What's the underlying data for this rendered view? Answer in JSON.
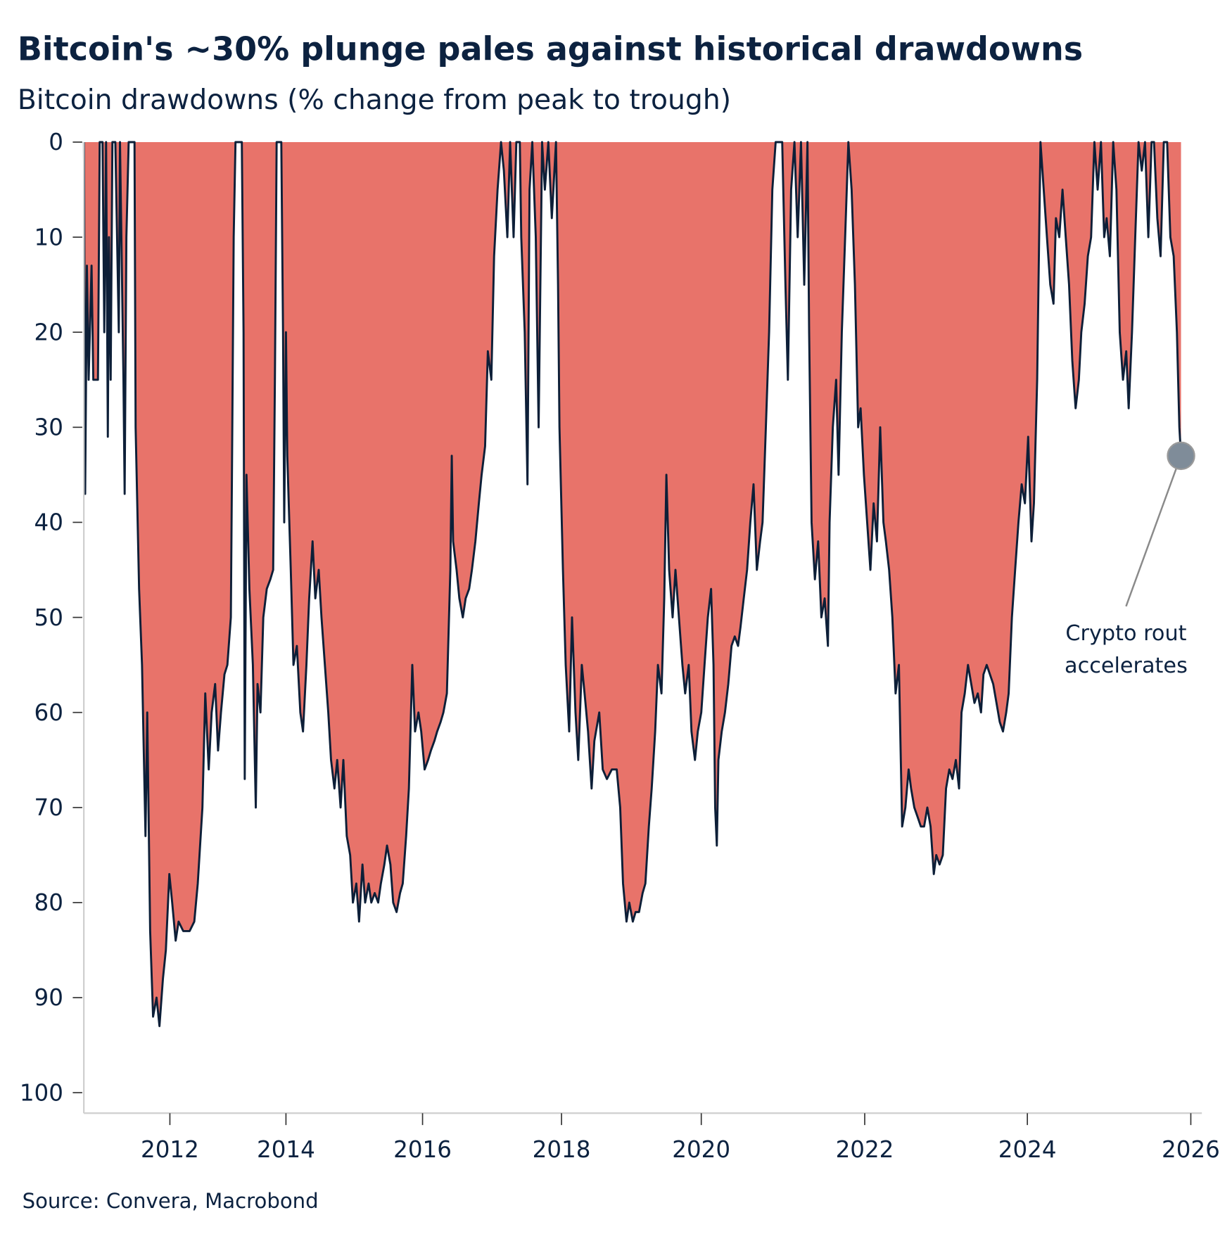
{
  "title": "Bitcoin's ~30% plunge pales against historical drawdowns",
  "subtitle": "Bitcoin drawdowns (% change from peak to trough)",
  "source": "Source: Convera, Macrobond",
  "annotation": {
    "line1": "Crypto rout",
    "line2": "accelerates"
  },
  "colors": {
    "fill": "#e8736a",
    "line": "#0d1f38",
    "marker": "#7f8c99",
    "text": "#0c2240"
  },
  "chart_data": {
    "type": "area",
    "title": "Bitcoin's ~30% plunge pales against historical drawdowns",
    "subtitle": "Bitcoin drawdowns (% change from peak to trough)",
    "xlabel": "",
    "ylabel": "",
    "y_inverted": true,
    "ylim": [
      0,
      100
    ],
    "y_ticks": [
      "0",
      "10",
      "20",
      "30",
      "40",
      "50",
      "60",
      "70",
      "80",
      "90",
      "100"
    ],
    "x_ticks": [
      "2012",
      "2014",
      "2016",
      "2018",
      "2020",
      "2022",
      "2024",
      "2026"
    ],
    "grid": false,
    "annotation": {
      "text": "Crypto rout accelerates",
      "x": 2025.88,
      "y": 33
    },
    "points": [
      [
        2010.52,
        0
      ],
      [
        2010.54,
        37
      ],
      [
        2010.57,
        13
      ],
      [
        2010.6,
        25
      ],
      [
        2010.65,
        13
      ],
      [
        2010.68,
        25
      ],
      [
        2010.76,
        25
      ],
      [
        2010.79,
        0
      ],
      [
        2010.84,
        0
      ],
      [
        2010.87,
        20
      ],
      [
        2010.9,
        0
      ],
      [
        2010.93,
        31
      ],
      [
        2010.95,
        10
      ],
      [
        2010.98,
        25
      ],
      [
        2011.01,
        0
      ],
      [
        2011.06,
        0
      ],
      [
        2011.12,
        20
      ],
      [
        2011.14,
        0
      ],
      [
        2011.2,
        25
      ],
      [
        2011.22,
        37
      ],
      [
        2011.25,
        10
      ],
      [
        2011.29,
        0
      ],
      [
        2011.39,
        0
      ],
      [
        2011.41,
        30
      ],
      [
        2011.47,
        47
      ],
      [
        2011.52,
        55
      ],
      [
        2011.58,
        73
      ],
      [
        2011.61,
        60
      ],
      [
        2011.66,
        83
      ],
      [
        2011.71,
        92
      ],
      [
        2011.77,
        90
      ],
      [
        2011.82,
        93
      ],
      [
        2011.88,
        88
      ],
      [
        2011.93,
        85
      ],
      [
        2011.99,
        77
      ],
      [
        2012.04,
        80
      ],
      [
        2012.1,
        84
      ],
      [
        2012.15,
        82
      ],
      [
        2012.23,
        83
      ],
      [
        2012.34,
        83
      ],
      [
        2012.42,
        82
      ],
      [
        2012.48,
        78
      ],
      [
        2012.56,
        70
      ],
      [
        2012.61,
        58
      ],
      [
        2012.67,
        66
      ],
      [
        2012.72,
        60
      ],
      [
        2012.78,
        57
      ],
      [
        2012.83,
        64
      ],
      [
        2012.88,
        60
      ],
      [
        2012.94,
        56
      ],
      [
        2012.99,
        55
      ],
      [
        2013.05,
        50
      ],
      [
        2013.07,
        35
      ],
      [
        2013.1,
        10
      ],
      [
        2013.13,
        0
      ],
      [
        2013.24,
        0
      ],
      [
        2013.27,
        20
      ],
      [
        2013.29,
        67
      ],
      [
        2013.32,
        35
      ],
      [
        2013.37,
        47
      ],
      [
        2013.43,
        55
      ],
      [
        2013.48,
        70
      ],
      [
        2013.51,
        57
      ],
      [
        2013.56,
        60
      ],
      [
        2013.61,
        50
      ],
      [
        2013.67,
        47
      ],
      [
        2013.73,
        46
      ],
      [
        2013.78,
        45
      ],
      [
        2013.81,
        25
      ],
      [
        2013.84,
        0
      ],
      [
        2013.92,
        0
      ],
      [
        2013.95,
        20
      ],
      [
        2013.97,
        40
      ],
      [
        2014.0,
        20
      ],
      [
        2014.02,
        33
      ],
      [
        2014.07,
        45
      ],
      [
        2014.11,
        55
      ],
      [
        2014.16,
        53
      ],
      [
        2014.21,
        60
      ],
      [
        2014.25,
        62
      ],
      [
        2014.3,
        55
      ],
      [
        2014.34,
        48
      ],
      [
        2014.39,
        42
      ],
      [
        2014.43,
        48
      ],
      [
        2014.48,
        45
      ],
      [
        2014.52,
        50
      ],
      [
        2014.57,
        55
      ],
      [
        2014.62,
        60
      ],
      [
        2014.66,
        65
      ],
      [
        2014.71,
        68
      ],
      [
        2014.75,
        65
      ],
      [
        2014.8,
        70
      ],
      [
        2014.84,
        65
      ],
      [
        2014.89,
        73
      ],
      [
        2014.94,
        75
      ],
      [
        2014.98,
        80
      ],
      [
        2015.03,
        78
      ],
      [
        2015.07,
        82
      ],
      [
        2015.12,
        76
      ],
      [
        2015.16,
        80
      ],
      [
        2015.21,
        78
      ],
      [
        2015.25,
        80
      ],
      [
        2015.3,
        79
      ],
      [
        2015.35,
        80
      ],
      [
        2015.39,
        78
      ],
      [
        2015.44,
        76
      ],
      [
        2015.48,
        74
      ],
      [
        2015.53,
        76
      ],
      [
        2015.57,
        80
      ],
      [
        2015.62,
        81
      ],
      [
        2015.67,
        79
      ],
      [
        2015.71,
        78
      ],
      [
        2015.76,
        73
      ],
      [
        2015.8,
        68
      ],
      [
        2015.85,
        55
      ],
      [
        2015.89,
        62
      ],
      [
        2015.94,
        60
      ],
      [
        2015.98,
        62
      ],
      [
        2016.03,
        66
      ],
      [
        2016.08,
        65
      ],
      [
        2016.12,
        64
      ],
      [
        2016.17,
        63
      ],
      [
        2016.21,
        62
      ],
      [
        2016.26,
        61
      ],
      [
        2016.3,
        60
      ],
      [
        2016.35,
        58
      ],
      [
        2016.4,
        45
      ],
      [
        2016.42,
        33
      ],
      [
        2016.44,
        42
      ],
      [
        2016.49,
        45
      ],
      [
        2016.53,
        48
      ],
      [
        2016.58,
        50
      ],
      [
        2016.62,
        48
      ],
      [
        2016.67,
        47
      ],
      [
        2016.71,
        45
      ],
      [
        2016.76,
        42
      ],
      [
        2016.81,
        38
      ],
      [
        2016.85,
        35
      ],
      [
        2016.9,
        32
      ],
      [
        2016.94,
        22
      ],
      [
        2016.99,
        25
      ],
      [
        2017.03,
        12
      ],
      [
        2017.08,
        5
      ],
      [
        2017.13,
        0
      ],
      [
        2017.17,
        3
      ],
      [
        2017.22,
        10
      ],
      [
        2017.26,
        0
      ],
      [
        2017.31,
        10
      ],
      [
        2017.35,
        0
      ],
      [
        2017.4,
        0
      ],
      [
        2017.42,
        10
      ],
      [
        2017.47,
        20
      ],
      [
        2017.51,
        36
      ],
      [
        2017.54,
        5
      ],
      [
        2017.58,
        0
      ],
      [
        2017.63,
        10
      ],
      [
        2017.67,
        30
      ],
      [
        2017.72,
        0
      ],
      [
        2017.76,
        5
      ],
      [
        2017.81,
        0
      ],
      [
        2017.86,
        8
      ],
      [
        2017.92,
        0
      ],
      [
        2017.95,
        15
      ],
      [
        2017.97,
        30
      ],
      [
        2018.02,
        45
      ],
      [
        2018.06,
        55
      ],
      [
        2018.11,
        62
      ],
      [
        2018.15,
        50
      ],
      [
        2018.2,
        60
      ],
      [
        2018.24,
        65
      ],
      [
        2018.29,
        55
      ],
      [
        2018.33,
        58
      ],
      [
        2018.38,
        62
      ],
      [
        2018.43,
        68
      ],
      [
        2018.47,
        63
      ],
      [
        2018.54,
        60
      ],
      [
        2018.59,
        66
      ],
      [
        2018.65,
        67
      ],
      [
        2018.72,
        66
      ],
      [
        2018.79,
        66
      ],
      [
        2018.84,
        70
      ],
      [
        2018.88,
        78
      ],
      [
        2018.93,
        82
      ],
      [
        2018.97,
        80
      ],
      [
        2019.02,
        82
      ],
      [
        2019.06,
        81
      ],
      [
        2019.11,
        81
      ],
      [
        2019.16,
        79
      ],
      [
        2019.2,
        78
      ],
      [
        2019.25,
        72
      ],
      [
        2019.29,
        68
      ],
      [
        2019.34,
        62
      ],
      [
        2019.38,
        55
      ],
      [
        2019.43,
        58
      ],
      [
        2019.47,
        48
      ],
      [
        2019.5,
        35
      ],
      [
        2019.54,
        45
      ],
      [
        2019.59,
        50
      ],
      [
        2019.63,
        45
      ],
      [
        2019.68,
        50
      ],
      [
        2019.73,
        55
      ],
      [
        2019.77,
        58
      ],
      [
        2019.82,
        55
      ],
      [
        2019.86,
        62
      ],
      [
        2019.91,
        65
      ],
      [
        2019.95,
        62
      ],
      [
        2020.0,
        60
      ],
      [
        2020.04,
        55
      ],
      [
        2020.08,
        50
      ],
      [
        2020.12,
        47
      ],
      [
        2020.15,
        55
      ],
      [
        2020.17,
        70
      ],
      [
        2020.19,
        74
      ],
      [
        2020.21,
        65
      ],
      [
        2020.25,
        62
      ],
      [
        2020.29,
        60
      ],
      [
        2020.33,
        57
      ],
      [
        2020.37,
        53
      ],
      [
        2020.41,
        52
      ],
      [
        2020.45,
        53
      ],
      [
        2020.48,
        51
      ],
      [
        2020.52,
        48
      ],
      [
        2020.56,
        45
      ],
      [
        2020.6,
        40
      ],
      [
        2020.64,
        36
      ],
      [
        2020.68,
        45
      ],
      [
        2020.72,
        42
      ],
      [
        2020.75,
        40
      ],
      [
        2020.79,
        30
      ],
      [
        2020.83,
        20
      ],
      [
        2020.87,
        5
      ],
      [
        2020.91,
        0
      ],
      [
        2020.99,
        0
      ],
      [
        2021.03,
        15
      ],
      [
        2021.06,
        25
      ],
      [
        2021.1,
        5
      ],
      [
        2021.14,
        0
      ],
      [
        2021.18,
        10
      ],
      [
        2021.22,
        0
      ],
      [
        2021.26,
        15
      ],
      [
        2021.3,
        0
      ],
      [
        2021.32,
        20
      ],
      [
        2021.35,
        40
      ],
      [
        2021.39,
        46
      ],
      [
        2021.43,
        42
      ],
      [
        2021.47,
        50
      ],
      [
        2021.51,
        48
      ],
      [
        2021.55,
        53
      ],
      [
        2021.57,
        40
      ],
      [
        2021.61,
        30
      ],
      [
        2021.65,
        25
      ],
      [
        2021.68,
        35
      ],
      [
        2021.72,
        20
      ],
      [
        2021.76,
        10
      ],
      [
        2021.8,
        0
      ],
      [
        2021.84,
        5
      ],
      [
        2021.88,
        15
      ],
      [
        2021.92,
        30
      ],
      [
        2021.95,
        28
      ],
      [
        2021.99,
        35
      ],
      [
        2022.03,
        40
      ],
      [
        2022.07,
        45
      ],
      [
        2022.11,
        38
      ],
      [
        2022.15,
        42
      ],
      [
        2022.19,
        30
      ],
      [
        2022.23,
        40
      ],
      [
        2022.26,
        42
      ],
      [
        2022.3,
        45
      ],
      [
        2022.34,
        50
      ],
      [
        2022.38,
        58
      ],
      [
        2022.42,
        55
      ],
      [
        2022.46,
        72
      ],
      [
        2022.5,
        70
      ],
      [
        2022.54,
        66
      ],
      [
        2022.57,
        68
      ],
      [
        2022.61,
        70
      ],
      [
        2022.65,
        71
      ],
      [
        2022.69,
        72
      ],
      [
        2022.73,
        72
      ],
      [
        2022.77,
        70
      ],
      [
        2022.81,
        72
      ],
      [
        2022.85,
        77
      ],
      [
        2022.88,
        75
      ],
      [
        2022.92,
        76
      ],
      [
        2022.96,
        75
      ],
      [
        2023.0,
        68
      ],
      [
        2023.04,
        66
      ],
      [
        2023.08,
        67
      ],
      [
        2023.12,
        65
      ],
      [
        2023.16,
        68
      ],
      [
        2023.19,
        60
      ],
      [
        2023.23,
        58
      ],
      [
        2023.27,
        55
      ],
      [
        2023.31,
        57
      ],
      [
        2023.35,
        59
      ],
      [
        2023.39,
        58
      ],
      [
        2023.43,
        60
      ],
      [
        2023.46,
        56
      ],
      [
        2023.5,
        55
      ],
      [
        2023.54,
        56
      ],
      [
        2023.58,
        57
      ],
      [
        2023.62,
        59
      ],
      [
        2023.66,
        61
      ],
      [
        2023.7,
        62
      ],
      [
        2023.74,
        60
      ],
      [
        2023.77,
        58
      ],
      [
        2023.81,
        50
      ],
      [
        2023.85,
        45
      ],
      [
        2023.89,
        40
      ],
      [
        2023.93,
        36
      ],
      [
        2023.97,
        38
      ],
      [
        2024.01,
        31
      ],
      [
        2024.05,
        42
      ],
      [
        2024.08,
        38
      ],
      [
        2024.12,
        25
      ],
      [
        2024.16,
        0
      ],
      [
        2024.2,
        5
      ],
      [
        2024.24,
        10
      ],
      [
        2024.28,
        15
      ],
      [
        2024.32,
        17
      ],
      [
        2024.35,
        8
      ],
      [
        2024.39,
        10
      ],
      [
        2024.43,
        5
      ],
      [
        2024.47,
        10
      ],
      [
        2024.51,
        15
      ],
      [
        2024.55,
        23
      ],
      [
        2024.59,
        28
      ],
      [
        2024.63,
        25
      ],
      [
        2024.66,
        20
      ],
      [
        2024.7,
        17
      ],
      [
        2024.74,
        12
      ],
      [
        2024.78,
        10
      ],
      [
        2024.82,
        0
      ],
      [
        2024.86,
        5
      ],
      [
        2024.9,
        0
      ],
      [
        2024.94,
        10
      ],
      [
        2024.97,
        8
      ],
      [
        2025.01,
        12
      ],
      [
        2025.05,
        0
      ],
      [
        2025.09,
        5
      ],
      [
        2025.13,
        20
      ],
      [
        2025.17,
        25
      ],
      [
        2025.21,
        22
      ],
      [
        2025.24,
        28
      ],
      [
        2025.28,
        20
      ],
      [
        2025.32,
        10
      ],
      [
        2025.36,
        0
      ],
      [
        2025.4,
        3
      ],
      [
        2025.44,
        0
      ],
      [
        2025.48,
        10
      ],
      [
        2025.52,
        0
      ],
      [
        2025.55,
        0
      ],
      [
        2025.59,
        8
      ],
      [
        2025.63,
        12
      ],
      [
        2025.67,
        0
      ],
      [
        2025.71,
        0
      ],
      [
        2025.75,
        10
      ],
      [
        2025.79,
        12
      ],
      [
        2025.83,
        20
      ],
      [
        2025.86,
        30
      ],
      [
        2025.88,
        33
      ]
    ]
  }
}
